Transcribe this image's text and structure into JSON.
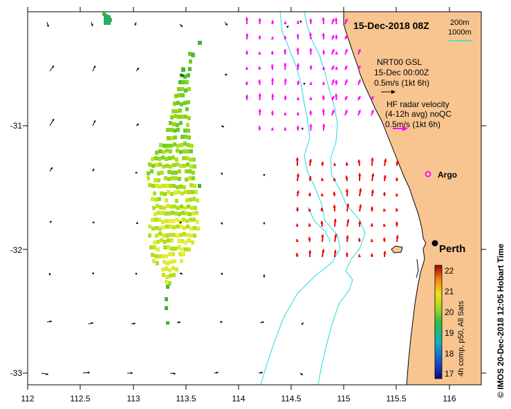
{
  "title": "15-Dec-2018 08Z",
  "depth_legend": {
    "contour_1": "200m",
    "contour_2": "1000m",
    "color": "#33dddd"
  },
  "model_legend": {
    "line1": "NRT00 GSL",
    "line2": "15-Dec 00:00Z",
    "line3": "0.5m/s (1kt 6h)",
    "arrow_color": "#000000"
  },
  "radar_legend": {
    "line1": "HF radar velocity",
    "line2": "(4-12h avg) noQC",
    "line3": "0.5m/s (1kt 6h)",
    "arrow_color": "#ff00ff"
  },
  "places": {
    "argo": "Argo",
    "perth": "Perth"
  },
  "side_caption": "© IMOS 20-Dec-2018 12:05 Hobart Time",
  "colorbar": {
    "label": "4h comp, p50, All Sats",
    "ticks": [
      "22",
      "21",
      "20",
      "19",
      "18",
      "17"
    ],
    "min": 16.8,
    "max": 22.2
  },
  "x_ticks": [
    "112",
    "112.5",
    "113",
    "113.5",
    "114",
    "114.5",
    "115",
    "115.5",
    "116"
  ],
  "y_ticks": [
    "-31",
    "-32",
    "-33"
  ],
  "colors": {
    "land": "#f8c590",
    "coast": "#000000",
    "contours": "#33dddd",
    "radar_north": "#ff00ff",
    "radar_south": "#ee0000"
  },
  "chart_data": {
    "type": "map",
    "xlim": [
      112,
      116.3
    ],
    "ylim": [
      -33.1,
      -30.1
    ],
    "xlabel": "",
    "ylabel": "",
    "places": [
      {
        "name": "Argo",
        "lon": 115.82,
        "lat": -31.4
      },
      {
        "name": "Perth",
        "lon": 115.87,
        "lat": -31.95
      }
    ]
  }
}
